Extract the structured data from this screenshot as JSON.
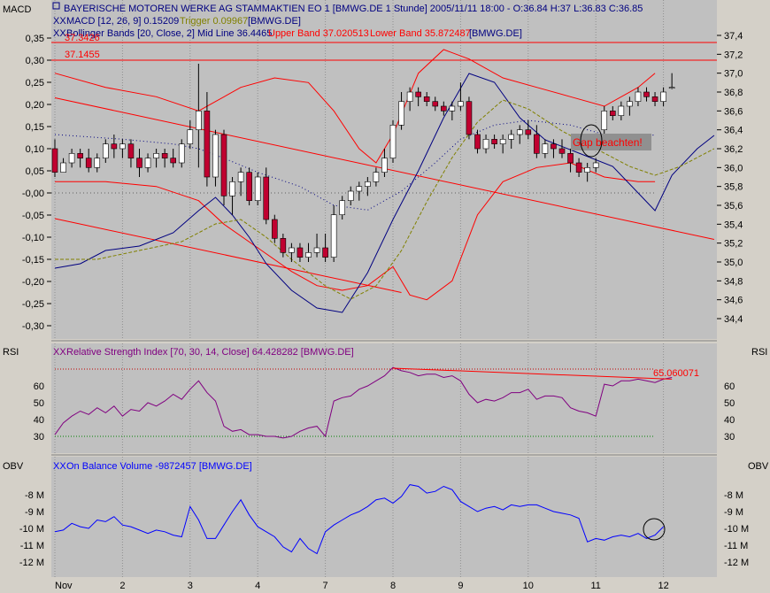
{
  "header": {
    "line1": "BAYERISCHE MOTOREN WERKE AG STAMMAKTIEN EO 1 [BMWG.DE  1 Stunde] 2005/11/11 18:00 - O:36.84 H:37 L:36.83 C:36.85",
    "macd_legend": {
      "name": "MACD [12, 26, 9] 0.15209",
      "trigger": "Trigger 0.09967",
      "ticker": "[BMWG.DE]"
    },
    "bb_legend": {
      "name": "Bollinger Bands [20, Close, 2] Mid Line 36.4465",
      "upper": "Upper Band 37.020513",
      "lower": "Lower Band 35.872487",
      "ticker": "[BMWG.DE]"
    }
  },
  "colors": {
    "panel_bg": "#c0c0c0",
    "frame_bg": "#d4d0c8",
    "up_candle": "#ffffff",
    "down_candle": "#c00030",
    "bollinger": "#ff0000",
    "macd": "#000080",
    "trigger": "#808000",
    "rsi": "#800080",
    "obv": "#0000ff",
    "trendline": "#ff0000"
  },
  "annotations": {
    "level_upper": "37.3426",
    "level_lower": "37.1455",
    "gap_note": "Gap beachten!",
    "rsi_trend_value": "65.060071"
  },
  "rsi_panel": {
    "side_label": "RSI",
    "legend": "Relative Strength Index [70, 30, 14, Close] 64.428282 [BMWG.DE]"
  },
  "obv_panel": {
    "side_label": "OBV",
    "legend": "On Balance Volume -9872457 [BMWG.DE]"
  },
  "macd_axis_label": "MACD",
  "chart_data": [
    {
      "type": "candlestick",
      "title": "",
      "x_tick_labels": [
        "Nov",
        "2",
        "3",
        "4",
        "7",
        "8",
        "9",
        "10",
        "11",
        "12"
      ],
      "x_tick_index": [
        0,
        8,
        16,
        24,
        32,
        40,
        48,
        56,
        64,
        72
      ],
      "y_right_ticks": [
        "37,4",
        "37,2",
        "37,0",
        "36,8",
        "36,6",
        "36,4",
        "36,2",
        "36,0",
        "35,8",
        "35,6",
        "35,4",
        "35,2",
        "35,0",
        "34,8",
        "34,6",
        "34,4"
      ],
      "y_right_values": [
        37.4,
        37.2,
        37.0,
        36.8,
        36.6,
        36.4,
        36.2,
        36.0,
        35.8,
        35.6,
        35.4,
        35.2,
        35.0,
        34.8,
        34.6,
        34.4
      ],
      "y_left_ticks": [
        "0,35",
        "0,30",
        "0,25",
        "0,20",
        "0,15",
        "0,10",
        "0,05",
        "-0,00",
        "-0,05",
        "-0,10",
        "-0,15",
        "-0,20",
        "-0,25",
        "-0,30"
      ],
      "y_left_values": [
        0.35,
        0.3,
        0.25,
        0.2,
        0.15,
        0.1,
        0.05,
        0.0,
        -0.05,
        -0.1,
        -0.15,
        -0.2,
        -0.25,
        -0.3
      ],
      "ohlc": [
        [
          36.2,
          36.3,
          35.9,
          35.95
        ],
        [
          35.95,
          36.1,
          35.95,
          36.05
        ],
        [
          36.05,
          36.2,
          36.0,
          36.15
        ],
        [
          36.15,
          36.2,
          36.0,
          36.1
        ],
        [
          36.1,
          36.2,
          35.95,
          36.0
        ],
        [
          36.0,
          36.15,
          35.95,
          36.1
        ],
        [
          36.1,
          36.3,
          36.05,
          36.25
        ],
        [
          36.25,
          36.35,
          36.1,
          36.2
        ],
        [
          36.2,
          36.3,
          36.1,
          36.25
        ],
        [
          36.25,
          36.3,
          36.0,
          36.1
        ],
        [
          36.1,
          36.2,
          35.9,
          36.0
        ],
        [
          36.0,
          36.15,
          35.95,
          36.1
        ],
        [
          36.1,
          36.2,
          36.0,
          36.15
        ],
        [
          36.15,
          36.2,
          36.0,
          36.1
        ],
        [
          36.1,
          36.2,
          36.0,
          36.05
        ],
        [
          36.05,
          36.3,
          36.0,
          36.25
        ],
        [
          36.25,
          36.5,
          36.2,
          36.4
        ],
        [
          36.4,
          37.1,
          36.0,
          36.6
        ],
        [
          36.6,
          36.8,
          35.8,
          35.9
        ],
        [
          35.9,
          36.4,
          35.8,
          36.35
        ],
        [
          36.35,
          36.4,
          35.6,
          35.7
        ],
        [
          35.7,
          35.9,
          35.5,
          35.85
        ],
        [
          35.85,
          36.0,
          35.7,
          35.95
        ],
        [
          35.95,
          36.0,
          35.6,
          35.65
        ],
        [
          35.65,
          35.95,
          35.6,
          35.9
        ],
        [
          35.9,
          36.0,
          35.4,
          35.45
        ],
        [
          35.45,
          35.5,
          35.2,
          35.25
        ],
        [
          35.25,
          35.3,
          35.05,
          35.1
        ],
        [
          35.1,
          35.2,
          35.0,
          35.15
        ],
        [
          35.15,
          35.2,
          35.0,
          35.05
        ],
        [
          35.05,
          35.2,
          35.0,
          35.1
        ],
        [
          35.1,
          35.3,
          35.05,
          35.15
        ],
        [
          35.15,
          35.3,
          35.0,
          35.05
        ],
        [
          35.05,
          35.6,
          35.0,
          35.5
        ],
        [
          35.5,
          35.7,
          35.45,
          35.65
        ],
        [
          35.65,
          35.8,
          35.6,
          35.75
        ],
        [
          35.75,
          35.85,
          35.65,
          35.8
        ],
        [
          35.8,
          35.9,
          35.7,
          35.85
        ],
        [
          35.85,
          36.0,
          35.8,
          35.95
        ],
        [
          35.95,
          36.2,
          35.9,
          36.1
        ],
        [
          36.1,
          36.5,
          36.05,
          36.45
        ],
        [
          36.45,
          36.8,
          36.4,
          36.7
        ],
        [
          36.7,
          36.85,
          36.6,
          36.8
        ],
        [
          36.8,
          36.85,
          36.65,
          36.75
        ],
        [
          36.75,
          36.8,
          36.65,
          36.7
        ],
        [
          36.7,
          36.75,
          36.6,
          36.65
        ],
        [
          36.65,
          36.7,
          36.55,
          36.6
        ],
        [
          36.6,
          36.7,
          36.5,
          36.65
        ],
        [
          36.65,
          36.9,
          36.6,
          36.7
        ],
        [
          36.7,
          36.75,
          36.3,
          36.35
        ],
        [
          36.35,
          36.4,
          36.15,
          36.2
        ],
        [
          36.2,
          36.35,
          36.15,
          36.3
        ],
        [
          36.3,
          36.35,
          36.2,
          36.25
        ],
        [
          36.25,
          36.35,
          36.15,
          36.3
        ],
        [
          36.3,
          36.4,
          36.2,
          36.35
        ],
        [
          36.35,
          36.45,
          36.25,
          36.4
        ],
        [
          36.4,
          36.5,
          36.3,
          36.35
        ],
        [
          36.35,
          36.45,
          36.1,
          36.15
        ],
        [
          36.15,
          36.3,
          36.1,
          36.25
        ],
        [
          36.25,
          36.3,
          36.1,
          36.2
        ],
        [
          36.2,
          36.3,
          36.1,
          36.15
        ],
        [
          36.15,
          36.2,
          35.95,
          36.05
        ],
        [
          36.05,
          36.1,
          35.9,
          35.95
        ],
        [
          35.95,
          36.05,
          35.85,
          36.0
        ],
        [
          36.0,
          36.1,
          35.95,
          36.05
        ],
        [
          36.4,
          36.65,
          36.35,
          36.6
        ],
        [
          36.6,
          36.65,
          36.5,
          36.55
        ],
        [
          36.55,
          36.7,
          36.5,
          36.65
        ],
        [
          36.65,
          36.75,
          36.55,
          36.7
        ],
        [
          36.7,
          36.85,
          36.65,
          36.8
        ],
        [
          36.8,
          36.85,
          36.7,
          36.75
        ],
        [
          36.75,
          36.8,
          36.65,
          36.7
        ],
        [
          36.7,
          36.85,
          36.65,
          36.8
        ],
        [
          36.84,
          37.0,
          36.83,
          36.85
        ]
      ],
      "bollinger": {
        "upper_points": [
          [
            0,
            37.0
          ],
          [
            6,
            36.85
          ],
          [
            12,
            36.75
          ],
          [
            17,
            36.6
          ],
          [
            19,
            36.7
          ],
          [
            22,
            36.85
          ],
          [
            26,
            36.95
          ],
          [
            30,
            36.9
          ],
          [
            33,
            36.6
          ],
          [
            36,
            36.2
          ],
          [
            38,
            36.05
          ],
          [
            40,
            36.35
          ],
          [
            43,
            37.0
          ],
          [
            46,
            37.25
          ],
          [
            49,
            37.15
          ],
          [
            53,
            36.95
          ],
          [
            57,
            36.85
          ],
          [
            61,
            36.75
          ],
          [
            65,
            36.65
          ],
          [
            69,
            36.85
          ],
          [
            71,
            37.0
          ]
        ],
        "mid_points": [
          [
            0,
            36.35
          ],
          [
            8,
            36.3
          ],
          [
            14,
            36.25
          ],
          [
            17,
            36.2
          ],
          [
            20,
            36.1
          ],
          [
            24,
            35.95
          ],
          [
            29,
            35.8
          ],
          [
            33,
            35.6
          ],
          [
            37,
            35.55
          ],
          [
            41,
            35.75
          ],
          [
            45,
            36.05
          ],
          [
            48,
            36.3
          ],
          [
            52,
            36.45
          ],
          [
            56,
            36.5
          ],
          [
            61,
            36.45
          ],
          [
            65,
            36.35
          ],
          [
            69,
            36.3
          ],
          [
            71,
            36.35
          ]
        ],
        "lower_points": [
          [
            0,
            35.85
          ],
          [
            6,
            35.85
          ],
          [
            12,
            35.8
          ],
          [
            17,
            35.65
          ],
          [
            20,
            35.4
          ],
          [
            24,
            35.15
          ],
          [
            28,
            34.9
          ],
          [
            31,
            34.75
          ],
          [
            34,
            34.7
          ],
          [
            37,
            34.75
          ],
          [
            40,
            34.95
          ],
          [
            42,
            34.65
          ],
          [
            44,
            34.6
          ],
          [
            47,
            34.8
          ],
          [
            50,
            35.5
          ],
          [
            53,
            35.85
          ],
          [
            57,
            36.0
          ],
          [
            61,
            36.05
          ],
          [
            65,
            35.9
          ],
          [
            69,
            35.85
          ],
          [
            71,
            35.85
          ]
        ]
      },
      "macd": {
        "macd_points": [
          [
            0,
            -0.17
          ],
          [
            3,
            -0.16
          ],
          [
            6,
            -0.13
          ],
          [
            10,
            -0.12
          ],
          [
            14,
            -0.09
          ],
          [
            17,
            -0.04
          ],
          [
            19,
            -0.01
          ],
          [
            21,
            -0.05
          ],
          [
            23,
            -0.1
          ],
          [
            25,
            -0.16
          ],
          [
            28,
            -0.22
          ],
          [
            31,
            -0.26
          ],
          [
            34,
            -0.27
          ],
          [
            37,
            -0.18
          ],
          [
            40,
            -0.06
          ],
          [
            43,
            0.05
          ],
          [
            46,
            0.17
          ],
          [
            49,
            0.27
          ],
          [
            52,
            0.25
          ],
          [
            55,
            0.17
          ],
          [
            58,
            0.12
          ],
          [
            62,
            0.09
          ],
          [
            66,
            0.06
          ],
          [
            69,
            0.0
          ],
          [
            71,
            -0.04
          ],
          [
            73,
            0.04
          ],
          [
            76,
            0.1
          ],
          [
            78,
            0.13
          ]
        ],
        "trigger_points": [
          [
            0,
            -0.15
          ],
          [
            5,
            -0.15
          ],
          [
            10,
            -0.13
          ],
          [
            15,
            -0.11
          ],
          [
            19,
            -0.07
          ],
          [
            22,
            -0.06
          ],
          [
            25,
            -0.1
          ],
          [
            28,
            -0.15
          ],
          [
            32,
            -0.21
          ],
          [
            35,
            -0.24
          ],
          [
            38,
            -0.21
          ],
          [
            41,
            -0.13
          ],
          [
            44,
            -0.02
          ],
          [
            47,
            0.08
          ],
          [
            50,
            0.16
          ],
          [
            53,
            0.21
          ],
          [
            56,
            0.19
          ],
          [
            60,
            0.14
          ],
          [
            64,
            0.1
          ],
          [
            68,
            0.06
          ],
          [
            71,
            0.04
          ],
          [
            74,
            0.06
          ],
          [
            78,
            0.1
          ]
        ]
      },
      "trendlines": [
        {
          "from": [
            0,
            0.215
          ],
          "to": [
            78,
            -0.105
          ],
          "axis": "macd"
        },
        {
          "from": [
            0,
            -0.058
          ],
          "to": [
            41,
            -0.225
          ],
          "axis": "macd"
        }
      ]
    },
    {
      "type": "line",
      "title": "",
      "y_ticks": [
        "60",
        "50",
        "40",
        "30"
      ],
      "y_values": [
        60,
        50,
        40,
        30
      ],
      "overbought": 70,
      "oversold": 30,
      "series": [
        {
          "name": "Relative Strength Index",
          "values": [
            31,
            38,
            42,
            45,
            43,
            47,
            44,
            48,
            42,
            46,
            45,
            50,
            48,
            51,
            55,
            52,
            58,
            63,
            56,
            51,
            36,
            33,
            34,
            31,
            31,
            30,
            30,
            29,
            30,
            33,
            35,
            36,
            30,
            51,
            53,
            54,
            58,
            60,
            63,
            66,
            71,
            69,
            68,
            66,
            67,
            67,
            65,
            66,
            63,
            55,
            50,
            52,
            51,
            53,
            56,
            56,
            58,
            52,
            54,
            54,
            53,
            47,
            45,
            44,
            42,
            61,
            60,
            63,
            63,
            64,
            63,
            62,
            64,
            65
          ]
        }
      ],
      "trend_value": "65.060071"
    },
    {
      "type": "line",
      "title": "",
      "y_ticks": [
        "-8 M",
        "-9 M",
        "-10 M",
        "-11 M",
        "-12 M"
      ],
      "y_values": [
        -8,
        -9,
        -10,
        -11,
        -12
      ],
      "series": [
        {
          "name": "On Balance Volume",
          "values": [
            -10.2,
            -10.1,
            -9.7,
            -9.9,
            -10.0,
            -9.5,
            -9.6,
            -9.3,
            -9.8,
            -9.9,
            -10.1,
            -10.3,
            -10.1,
            -10.2,
            -10.4,
            -10.5,
            -8.7,
            -9.5,
            -10.6,
            -10.6,
            -9.8,
            -9.0,
            -8.3,
            -9.2,
            -9.9,
            -10.2,
            -10.5,
            -11.1,
            -11.4,
            -10.6,
            -11.2,
            -11.5,
            -10.2,
            -9.8,
            -9.5,
            -9.2,
            -9.0,
            -8.7,
            -8.3,
            -8.2,
            -8.5,
            -8.1,
            -7.4,
            -7.5,
            -7.9,
            -7.8,
            -7.5,
            -7.7,
            -8.4,
            -8.7,
            -9.0,
            -8.8,
            -8.7,
            -8.9,
            -8.6,
            -8.7,
            -8.6,
            -8.6,
            -8.8,
            -9.0,
            -9.1,
            -9.2,
            -9.4,
            -10.8,
            -10.6,
            -10.7,
            -10.5,
            -10.4,
            -10.5,
            -10.3,
            -10.6,
            -10.4,
            -9.9
          ]
        }
      ]
    }
  ]
}
